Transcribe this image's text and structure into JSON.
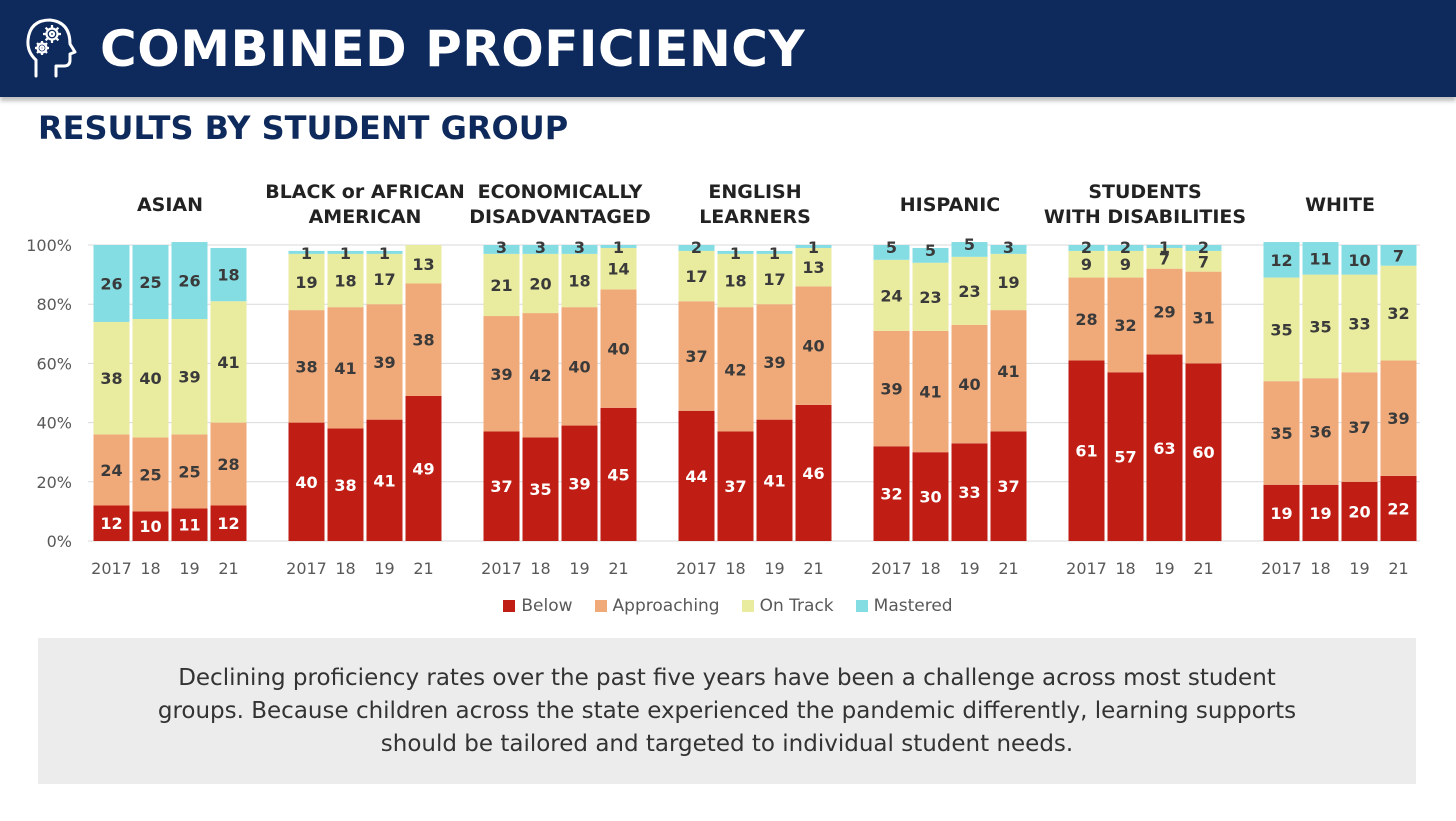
{
  "header": {
    "title": "COMBINED PROFICIENCY",
    "subtitle": "RESULTS BY STUDENT GROUP",
    "icon": "head-gears-icon"
  },
  "colors": {
    "banner": "#0e2a5c",
    "Below": "#c01d14",
    "Approaching": "#f0aa7a",
    "On Track": "#e9eb9e",
    "Mastered": "#84dde3"
  },
  "chart_data": {
    "type": "bar",
    "stacked": true,
    "ylim": [
      0,
      100
    ],
    "y_ticks": [
      "0%",
      "20%",
      "40%",
      "60%",
      "80%",
      "100%"
    ],
    "grid": true,
    "legend_placement": "bottom",
    "legend": [
      "Below",
      "Approaching",
      "On Track",
      "Mastered"
    ],
    "groups": [
      {
        "title_lines": [
          "ASIAN"
        ],
        "categories": [
          "2017",
          "18",
          "19",
          "21"
        ],
        "series": [
          {
            "name": "Below",
            "values": [
              12,
              10,
              11,
              12
            ]
          },
          {
            "name": "Approaching",
            "values": [
              24,
              25,
              25,
              28
            ]
          },
          {
            "name": "On Track",
            "values": [
              38,
              40,
              39,
              41
            ]
          },
          {
            "name": "Mastered",
            "values": [
              26,
              25,
              26,
              18
            ]
          }
        ]
      },
      {
        "title_lines": [
          "BLACK or AFRICAN",
          "AMERICAN"
        ],
        "categories": [
          "2017",
          "18",
          "19",
          "21"
        ],
        "series": [
          {
            "name": "Below",
            "values": [
              40,
              38,
              41,
              49
            ]
          },
          {
            "name": "Approaching",
            "values": [
              38,
              41,
              39,
              38
            ]
          },
          {
            "name": "On Track",
            "values": [
              19,
              18,
              17,
              13
            ]
          },
          {
            "name": "Mastered",
            "values": [
              1,
              1,
              1,
              null
            ]
          }
        ]
      },
      {
        "title_lines": [
          "ECONOMICALLY",
          "DISADVANTAGED"
        ],
        "categories": [
          "2017",
          "18",
          "19",
          "21"
        ],
        "series": [
          {
            "name": "Below",
            "values": [
              37,
              35,
              39,
              45
            ]
          },
          {
            "name": "Approaching",
            "values": [
              39,
              42,
              40,
              40
            ]
          },
          {
            "name": "On Track",
            "values": [
              21,
              20,
              18,
              14
            ]
          },
          {
            "name": "Mastered",
            "values": [
              3,
              3,
              3,
              1
            ]
          }
        ]
      },
      {
        "title_lines": [
          "ENGLISH",
          "LEARNERS"
        ],
        "categories": [
          "2017",
          "18",
          "19",
          "21"
        ],
        "series": [
          {
            "name": "Below",
            "values": [
              44,
              37,
              41,
              46
            ]
          },
          {
            "name": "Approaching",
            "values": [
              37,
              42,
              39,
              40
            ]
          },
          {
            "name": "On Track",
            "values": [
              17,
              18,
              17,
              13
            ]
          },
          {
            "name": "Mastered",
            "values": [
              2,
              1,
              1,
              1
            ]
          }
        ]
      },
      {
        "title_lines": [
          "HISPANIC"
        ],
        "categories": [
          "2017",
          "18",
          "19",
          "21"
        ],
        "series": [
          {
            "name": "Below",
            "values": [
              32,
              30,
              33,
              37
            ]
          },
          {
            "name": "Approaching",
            "values": [
              39,
              41,
              40,
              41
            ]
          },
          {
            "name": "On Track",
            "values": [
              24,
              23,
              23,
              19
            ]
          },
          {
            "name": "Mastered",
            "values": [
              5,
              5,
              5,
              3
            ]
          }
        ]
      },
      {
        "title_lines": [
          "STUDENTS",
          "WITH DISABILITIES"
        ],
        "categories": [
          "2017",
          "18",
          "19",
          "21"
        ],
        "series": [
          {
            "name": "Below",
            "values": [
              61,
              57,
              63,
              60
            ]
          },
          {
            "name": "Approaching",
            "values": [
              28,
              32,
              29,
              31
            ]
          },
          {
            "name": "On Track",
            "values": [
              9,
              9,
              7,
              7
            ]
          },
          {
            "name": "Mastered",
            "values": [
              2,
              2,
              1,
              2
            ]
          }
        ]
      },
      {
        "title_lines": [
          "WHITE"
        ],
        "categories": [
          "2017",
          "18",
          "19",
          "21"
        ],
        "series": [
          {
            "name": "Below",
            "values": [
              19,
              19,
              20,
              22
            ]
          },
          {
            "name": "Approaching",
            "values": [
              35,
              36,
              37,
              39
            ]
          },
          {
            "name": "On Track",
            "values": [
              35,
              35,
              33,
              32
            ]
          },
          {
            "name": "Mastered",
            "values": [
              12,
              11,
              10,
              7
            ]
          }
        ]
      }
    ]
  },
  "note": {
    "text": "Declining proficiency rates over the past five years have been a challenge across most student groups. Because children across the state experienced the pandemic differently, learning supports should be tailored and targeted to individual student needs."
  }
}
